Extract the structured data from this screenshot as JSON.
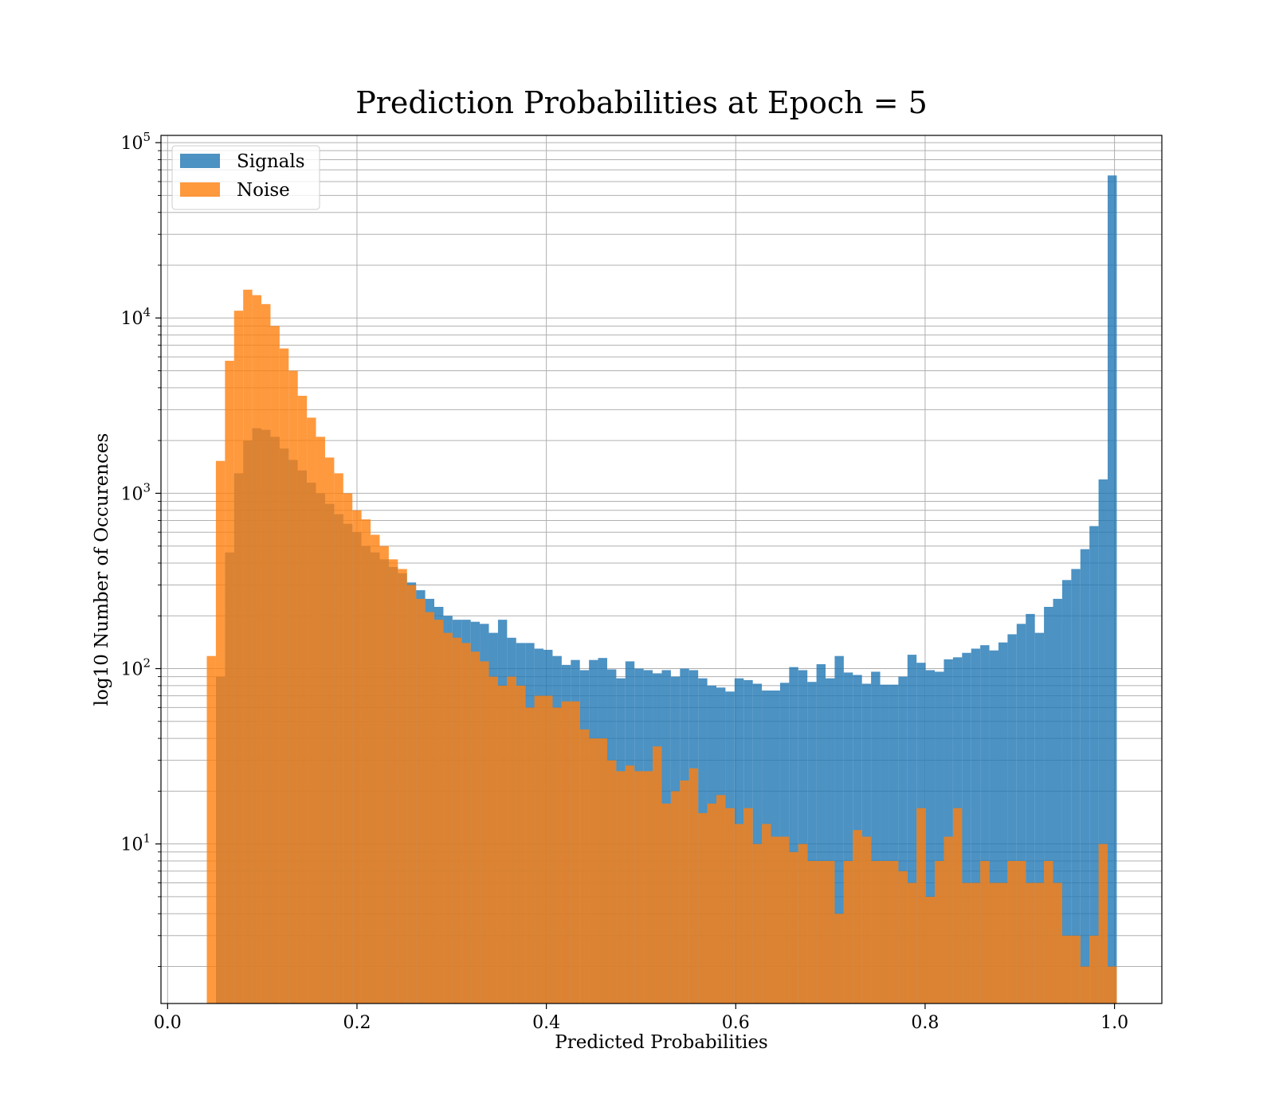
{
  "chart_data": {
    "type": "bar",
    "subtype": "histogram",
    "title": "Prediction Probabilities at Epoch = 5",
    "xlabel": "Predicted Probabilities",
    "ylabel": "log10 Number of Occurences",
    "xlim": [
      -0.007,
      1.05
    ],
    "ylim": [
      1.23,
      110000
    ],
    "y_scale": "log",
    "grid": true,
    "grid_minor_y": true,
    "legend_position": "upper-left",
    "x_ticks": [
      0.0,
      0.2,
      0.4,
      0.6,
      0.8,
      1.0
    ],
    "x_tick_labels": [
      "0.0",
      "0.2",
      "0.4",
      "0.6",
      "0.8",
      "1.0"
    ],
    "y_ticks": [
      10,
      100,
      1000,
      10000,
      100000
    ],
    "y_tick_labels": [
      {
        "base": "10",
        "exp": "1"
      },
      {
        "base": "10",
        "exp": "2"
      },
      {
        "base": "10",
        "exp": "3"
      },
      {
        "base": "10",
        "exp": "4"
      },
      {
        "base": "10",
        "exp": "5"
      }
    ],
    "bin_start": 0.0414,
    "bin_width": 0.00961,
    "series": [
      {
        "name": "Signals",
        "color": "#1f77b4",
        "alpha": 0.8,
        "values": [
          0,
          90,
          460,
          1300,
          2000,
          2350,
          2300,
          2100,
          1800,
          1550,
          1350,
          1150,
          1000,
          870,
          760,
          670,
          600,
          500,
          460,
          420,
          380,
          350,
          310,
          280,
          250,
          225,
          200,
          190,
          190,
          185,
          180,
          160,
          190,
          150,
          140,
          140,
          130,
          128,
          118,
          105,
          112,
          98,
          112,
          115,
          99,
          88,
          110,
          100,
          98,
          94,
          98,
          90,
          100,
          98,
          88,
          80,
          78,
          74,
          88,
          86,
          82,
          75,
          75,
          83,
          102,
          98,
          84,
          106,
          88,
          118,
          95,
          92,
          82,
          96,
          81,
          81,
          90,
          120,
          108,
          98,
          96,
          113,
          116,
          123,
          130,
          136,
          127,
          141,
          157,
          180,
          205,
          160,
          225,
          250,
          320,
          370,
          480,
          650,
          1200,
          65000
        ]
      },
      {
        "name": "Noise",
        "color": "#ff7f0e",
        "alpha": 0.8,
        "values": [
          118,
          1530,
          5700,
          11000,
          14500,
          13500,
          12000,
          9000,
          6700,
          5000,
          3600,
          2700,
          2100,
          1600,
          1300,
          1000,
          800,
          710,
          580,
          500,
          420,
          370,
          300,
          250,
          210,
          190,
          160,
          150,
          140,
          125,
          110,
          90,
          80,
          90,
          80,
          60,
          70,
          70,
          60,
          65,
          65,
          45,
          40,
          40,
          30,
          26,
          28,
          26,
          26,
          36,
          17,
          20,
          23,
          27,
          15,
          17,
          19,
          16,
          13,
          16,
          10,
          13,
          11,
          11,
          9,
          10,
          8,
          8,
          8,
          4,
          8,
          12,
          11,
          8,
          8,
          8,
          7,
          6,
          16,
          5,
          8,
          11,
          16,
          6,
          6,
          8,
          6,
          6,
          8,
          8,
          6,
          6,
          8,
          6,
          3,
          3,
          2,
          3,
          10,
          2
        ]
      }
    ]
  }
}
